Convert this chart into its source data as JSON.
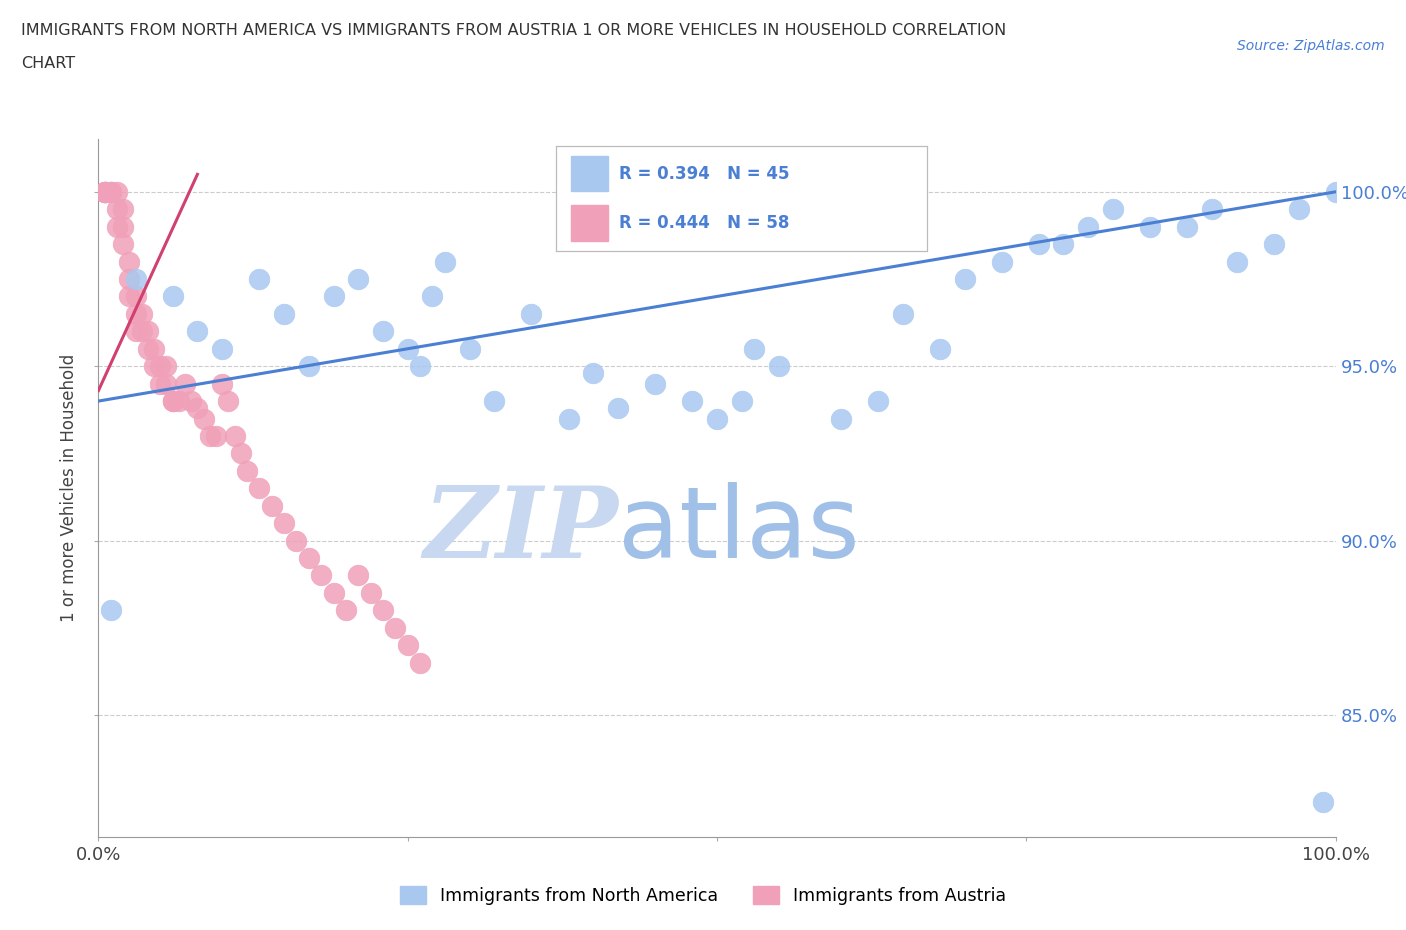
{
  "title_line1": "IMMIGRANTS FROM NORTH AMERICA VS IMMIGRANTS FROM AUSTRIA 1 OR MORE VEHICLES IN HOUSEHOLD CORRELATION",
  "title_line2": "CHART",
  "source": "Source: ZipAtlas.com",
  "ylabel": "1 or more Vehicles in Household",
  "yticks": [
    85.0,
    90.0,
    95.0,
    100.0
  ],
  "ytick_labels": [
    "85.0%",
    "90.0%",
    "95.0%",
    "100.0%"
  ],
  "xmin": 0.0,
  "xmax": 100.0,
  "ymin": 81.5,
  "ymax": 101.5,
  "blue_color": "#a8c8f0",
  "pink_color": "#f0a0b8",
  "blue_edge_color": "#7090c0",
  "pink_edge_color": "#d06080",
  "blue_line_color": "#4a7fd4",
  "pink_line_color": "#d04070",
  "r_blue": 0.394,
  "n_blue": 45,
  "r_pink": 0.444,
  "n_pink": 58,
  "legend_label_blue": "Immigrants from North America",
  "legend_label_pink": "Immigrants from Austria",
  "watermark_zip": "ZIP",
  "watermark_atlas": "atlas",
  "watermark_color_zip": "#c8d8f0",
  "watermark_color_atlas": "#a0c0e8",
  "blue_line_x0": 0.0,
  "blue_line_y0": 94.0,
  "blue_line_x1": 100.0,
  "blue_line_y1": 100.0,
  "pink_line_x0": 0.0,
  "pink_line_y0": 94.3,
  "pink_line_x1": 8.0,
  "pink_line_y1": 100.5,
  "blue_scatter_x": [
    1.0,
    3.0,
    6.0,
    8.0,
    10.0,
    13.0,
    15.0,
    17.0,
    19.0,
    21.0,
    23.0,
    25.0,
    26.0,
    27.0,
    28.0,
    30.0,
    32.0,
    35.0,
    38.0,
    40.0,
    42.0,
    45.0,
    48.0,
    50.0,
    52.0,
    53.0,
    55.0,
    60.0,
    63.0,
    65.0,
    68.0,
    70.0,
    73.0,
    76.0,
    78.0,
    80.0,
    82.0,
    85.0,
    88.0,
    90.0,
    92.0,
    95.0,
    97.0,
    99.0,
    100.0
  ],
  "blue_scatter_y": [
    88.0,
    97.5,
    97.0,
    96.0,
    95.5,
    97.5,
    96.5,
    95.0,
    97.0,
    97.5,
    96.0,
    95.5,
    95.0,
    97.0,
    98.0,
    95.5,
    94.0,
    96.5,
    93.5,
    94.8,
    93.8,
    94.5,
    94.0,
    93.5,
    94.0,
    95.5,
    95.0,
    93.5,
    94.0,
    96.5,
    95.5,
    97.5,
    98.0,
    98.5,
    98.5,
    99.0,
    99.5,
    99.0,
    99.0,
    99.5,
    98.0,
    98.5,
    99.5,
    82.5,
    100.0
  ],
  "pink_scatter_x": [
    0.5,
    0.5,
    0.5,
    0.5,
    0.5,
    1.0,
    1.0,
    1.0,
    1.5,
    1.5,
    1.5,
    2.0,
    2.0,
    2.0,
    2.5,
    2.5,
    2.5,
    3.0,
    3.0,
    3.0,
    3.5,
    3.5,
    4.0,
    4.0,
    4.5,
    4.5,
    5.0,
    5.0,
    5.5,
    5.5,
    6.0,
    6.0,
    6.5,
    7.0,
    7.5,
    8.0,
    8.5,
    9.0,
    9.5,
    10.0,
    10.5,
    11.0,
    11.5,
    12.0,
    13.0,
    14.0,
    15.0,
    16.0,
    17.0,
    18.0,
    19.0,
    20.0,
    21.0,
    22.0,
    23.0,
    24.0,
    25.0,
    26.0
  ],
  "pink_scatter_y": [
    100.0,
    100.0,
    100.0,
    100.0,
    100.0,
    100.0,
    100.0,
    100.0,
    100.0,
    99.5,
    99.0,
    99.5,
    99.0,
    98.5,
    98.0,
    97.5,
    97.0,
    97.0,
    96.5,
    96.0,
    96.5,
    96.0,
    96.0,
    95.5,
    95.5,
    95.0,
    95.0,
    94.5,
    95.0,
    94.5,
    94.0,
    94.0,
    94.0,
    94.5,
    94.0,
    93.8,
    93.5,
    93.0,
    93.0,
    94.5,
    94.0,
    93.0,
    92.5,
    92.0,
    91.5,
    91.0,
    90.5,
    90.0,
    89.5,
    89.0,
    88.5,
    88.0,
    89.0,
    88.5,
    88.0,
    87.5,
    87.0,
    86.5
  ]
}
